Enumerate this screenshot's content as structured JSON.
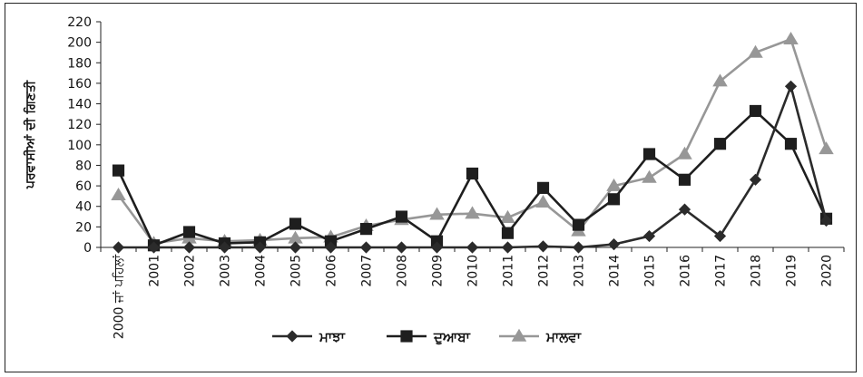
{
  "chart_data": {
    "type": "line",
    "title": "",
    "xlabel": "",
    "ylabel": "ਪਰਵਾਸੀਆਂ ਦੀ ਗਿਣਤੀ",
    "categories": [
      "2000 ਜਾਂ ਪਹਿਲਾਂ",
      "2001",
      "2002",
      "2003",
      "2004",
      "2005",
      "2006",
      "2007",
      "2008",
      "2009",
      "2010",
      "2011",
      "2012",
      "2013",
      "2014",
      "2015",
      "2016",
      "2017",
      "2018",
      "2019",
      "2020"
    ],
    "ylim": [
      0,
      220
    ],
    "yticks": [
      0,
      20,
      40,
      60,
      80,
      100,
      120,
      140,
      160,
      180,
      200,
      220
    ],
    "grid": false,
    "legend_position": "bottom",
    "series": [
      {
        "name": "ਮਾਝਾ",
        "marker": "diamond",
        "color": "#2b2b2b",
        "values": [
          0,
          0,
          0,
          0,
          0,
          0,
          0,
          0,
          0,
          0,
          0,
          0,
          1,
          0,
          3,
          11,
          37,
          11,
          66,
          157,
          26
        ]
      },
      {
        "name": "ਦੁਆਬਾ",
        "marker": "square",
        "color": "#1e1e1e",
        "values": [
          75,
          2,
          15,
          4,
          5,
          23,
          6,
          18,
          30,
          6,
          72,
          14,
          58,
          22,
          47,
          91,
          66,
          101,
          133,
          101,
          28
        ]
      },
      {
        "name": "ਮਾਲਵਾ",
        "marker": "triangle",
        "color": "#979797",
        "values": [
          51,
          4,
          9,
          6,
          7,
          9,
          10,
          21,
          27,
          32,
          33,
          29,
          44,
          16,
          60,
          68,
          91,
          162,
          190,
          203,
          96
        ]
      }
    ]
  }
}
